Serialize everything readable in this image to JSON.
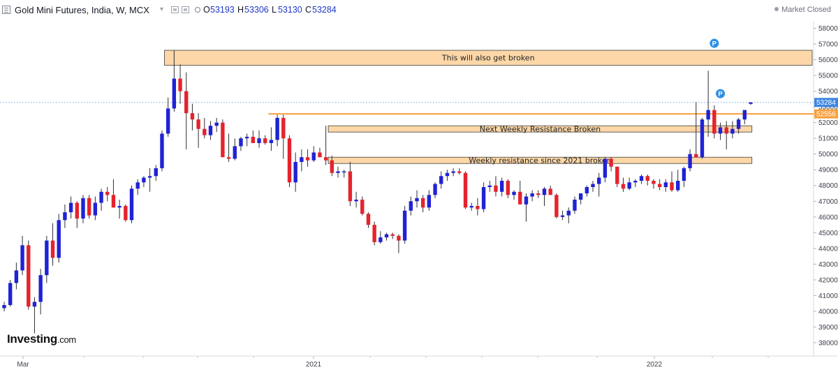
{
  "header": {
    "symbol": "Gold Mini Futures, India, W, MCX",
    "ohlc": [
      {
        "label": "O",
        "value": "53193"
      },
      {
        "label": "H",
        "value": "53306"
      },
      {
        "label": "L",
        "value": "53130"
      },
      {
        "label": "C",
        "value": "53284"
      }
    ],
    "market_status": "Market Closed"
  },
  "brand": {
    "name": "Investing",
    "suffix": ".com"
  },
  "colors": {
    "up": "#2022d6",
    "down": "#e5232d",
    "zone_fill": "#fcc989",
    "zone_border": "#3d3d3d",
    "line": "#f7a03c",
    "price_tag": "#3d86e0"
  },
  "chart_data": {
    "type": "candlestick",
    "ylim": [
      37600,
      58200
    ],
    "yticks": [
      38000,
      39000,
      40000,
      41000,
      42000,
      43000,
      44000,
      45000,
      46000,
      47000,
      48000,
      49000,
      50000,
      51000,
      52000,
      53000,
      54000,
      55000,
      56000,
      57000,
      58000
    ],
    "ytick_labels": [
      "38000",
      "39000",
      "40000",
      "41000",
      "42000",
      "43000",
      "44000",
      "45000",
      "46000",
      "47000",
      "48000",
      "49000",
      "50000",
      "51000",
      "52000",
      "53000",
      "54000",
      "55000",
      "56000",
      "57000",
      "58000"
    ],
    "xtick_labels": [
      "Mar",
      "2021",
      "2022"
    ],
    "candles": [
      [
        40200,
        40600,
        40000,
        40400
      ],
      [
        40400,
        42000,
        40300,
        41800
      ],
      [
        41800,
        43100,
        41400,
        42600
      ],
      [
        42600,
        44800,
        42300,
        44200
      ],
      [
        44200,
        44500,
        40100,
        40300
      ],
      [
        40300,
        40900,
        38600,
        40600
      ],
      [
        40600,
        42700,
        39800,
        42300
      ],
      [
        42300,
        44800,
        41800,
        44500
      ],
      [
        44500,
        45600,
        42900,
        43400
      ],
      [
        43400,
        46200,
        43100,
        45800
      ],
      [
        45800,
        46800,
        45300,
        46300
      ],
      [
        46300,
        47300,
        45900,
        46900
      ],
      [
        46900,
        47000,
        45300,
        45900
      ],
      [
        45900,
        47400,
        45600,
        47200
      ],
      [
        47200,
        47400,
        45900,
        46100
      ],
      [
        46100,
        47300,
        45800,
        46900
      ],
      [
        46900,
        47800,
        46400,
        47600
      ],
      [
        47600,
        47900,
        47000,
        47400
      ],
      [
        47400,
        48400,
        46600,
        46600
      ],
      [
        46600,
        47100,
        45900,
        46700
      ],
      [
        46700,
        46800,
        45700,
        45800
      ],
      [
        45800,
        48000,
        45600,
        47800
      ],
      [
        47800,
        48400,
        47400,
        48200
      ],
      [
        48200,
        48600,
        47900,
        48500
      ],
      [
        48500,
        49100,
        47600,
        48600
      ],
      [
        48600,
        49300,
        48300,
        49100
      ],
      [
        49100,
        51500,
        48900,
        51300
      ],
      [
        51300,
        53600,
        51100,
        52900
      ],
      [
        52900,
        56600,
        52700,
        54800
      ],
      [
        54800,
        55700,
        53200,
        54000
      ],
      [
        54000,
        55200,
        50300,
        52600
      ],
      [
        52600,
        53200,
        51500,
        52200
      ],
      [
        52200,
        52600,
        50400,
        51600
      ],
      [
        51600,
        52300,
        51000,
        51200
      ],
      [
        51200,
        52100,
        50900,
        51800
      ],
      [
        51800,
        52300,
        51400,
        52000
      ],
      [
        52000,
        52200,
        49800,
        49800
      ],
      [
        49800,
        51300,
        49500,
        49700
      ],
      [
        49700,
        51000,
        49600,
        50500
      ],
      [
        50500,
        51100,
        50200,
        51000
      ],
      [
        51000,
        51300,
        50500,
        51100
      ],
      [
        51100,
        51500,
        50700,
        50700
      ],
      [
        50700,
        51500,
        50400,
        51000
      ],
      [
        51000,
        51200,
        50600,
        50700
      ],
      [
        50700,
        51700,
        50200,
        50900
      ],
      [
        50900,
        52500,
        50500,
        52300
      ],
      [
        52300,
        52500,
        49700,
        51000
      ],
      [
        51000,
        51200,
        47900,
        48200
      ],
      [
        48200,
        50100,
        47600,
        49500
      ],
      [
        49500,
        50300,
        48900,
        49800
      ],
      [
        49800,
        50300,
        49200,
        49600
      ],
      [
        49600,
        50500,
        49500,
        50100
      ],
      [
        50100,
        50400,
        49800,
        49800
      ],
      [
        49800,
        51800,
        49300,
        49600
      ],
      [
        49600,
        49900,
        48600,
        48800
      ],
      [
        48800,
        49200,
        48500,
        48900
      ],
      [
        48900,
        49000,
        48500,
        48900
      ],
      [
        48900,
        49500,
        46700,
        47000
      ],
      [
        47000,
        47600,
        46600,
        47100
      ],
      [
        47100,
        47300,
        46100,
        46200
      ],
      [
        46200,
        46300,
        45300,
        45500
      ],
      [
        45500,
        45700,
        44200,
        44400
      ],
      [
        44400,
        45100,
        44300,
        44700
      ],
      [
        44700,
        45000,
        44500,
        44900
      ],
      [
        44900,
        45000,
        44600,
        44800
      ],
      [
        44800,
        44900,
        43700,
        44500
      ],
      [
        44500,
        46700,
        44300,
        46400
      ],
      [
        46400,
        47300,
        46100,
        47000
      ],
      [
        47000,
        47700,
        46600,
        47200
      ],
      [
        47200,
        47400,
        46300,
        46600
      ],
      [
        46600,
        47700,
        46400,
        47400
      ],
      [
        47400,
        48200,
        47200,
        48100
      ],
      [
        48100,
        48900,
        47800,
        48600
      ],
      [
        48600,
        49000,
        48300,
        48800
      ],
      [
        48800,
        49100,
        48600,
        48900
      ],
      [
        48900,
        49100,
        48700,
        48800
      ],
      [
        48800,
        48900,
        46500,
        46600
      ],
      [
        46600,
        46900,
        46400,
        46700
      ],
      [
        46700,
        47200,
        46100,
        46500
      ],
      [
        46500,
        48200,
        46300,
        47900
      ],
      [
        47900,
        48300,
        47600,
        48000
      ],
      [
        48000,
        48600,
        47300,
        47600
      ],
      [
        47600,
        48500,
        47300,
        48300
      ],
      [
        48300,
        48400,
        47200,
        47400
      ],
      [
        47400,
        47700,
        47100,
        47600
      ],
      [
        47600,
        48300,
        46800,
        46800
      ],
      [
        46800,
        47500,
        45700,
        47300
      ],
      [
        47300,
        47700,
        47000,
        47500
      ],
      [
        47500,
        47700,
        47200,
        47400
      ],
      [
        47400,
        47900,
        46700,
        47800
      ],
      [
        47800,
        48000,
        47400,
        47400
      ],
      [
        47400,
        47500,
        45900,
        46000
      ],
      [
        46000,
        46400,
        45800,
        46100
      ],
      [
        46100,
        46600,
        45600,
        46400
      ],
      [
        46400,
        47300,
        46200,
        47100
      ],
      [
        47100,
        47500,
        46800,
        47500
      ],
      [
        47500,
        48000,
        47300,
        47900
      ],
      [
        47900,
        48300,
        47600,
        48100
      ],
      [
        48100,
        48800,
        47300,
        48500
      ],
      [
        48500,
        49800,
        48200,
        49700
      ],
      [
        49700,
        49800,
        48900,
        49200
      ],
      [
        49200,
        49200,
        47900,
        48100
      ],
      [
        48100,
        48500,
        47600,
        47800
      ],
      [
        47800,
        48500,
        47700,
        48200
      ],
      [
        48200,
        48400,
        47900,
        48300
      ],
      [
        48300,
        48700,
        48100,
        48600
      ],
      [
        48600,
        48700,
        48000,
        48300
      ],
      [
        48300,
        48400,
        47800,
        48100
      ],
      [
        48100,
        48400,
        47700,
        47900
      ],
      [
        47900,
        48400,
        47600,
        48200
      ],
      [
        48200,
        48900,
        47600,
        47700
      ],
      [
        47700,
        49000,
        47600,
        48300
      ],
      [
        48300,
        49200,
        47900,
        49100
      ],
      [
        49100,
        50300,
        48900,
        50000
      ],
      [
        50000,
        53300,
        49900,
        49800
      ],
      [
        49800,
        52300,
        49700,
        52200
      ],
      [
        52200,
        55300,
        51100,
        52800
      ],
      [
        52800,
        53100,
        51000,
        51300
      ],
      [
        51300,
        52000,
        50900,
        51700
      ],
      [
        51700,
        52100,
        50300,
        51300
      ],
      [
        51300,
        52100,
        51000,
        51600
      ],
      [
        51600,
        52300,
        51300,
        52200
      ],
      [
        52200,
        52800,
        51900,
        52800
      ],
      [
        53193,
        53306,
        53130,
        53284
      ]
    ],
    "zones": [
      {
        "label": "This will also get broken",
        "top": 56600,
        "bottom": 55650,
        "start": 27,
        "end": "right"
      },
      {
        "label": "Next Weekly Resistance Broken",
        "top": 51800,
        "bottom": 51400,
        "start": 54,
        "end": 122
      },
      {
        "label": "Weekly resistance since 2021 broken",
        "top": 49800,
        "bottom": 49400,
        "start": 54,
        "end": 122
      }
    ],
    "hlines": [
      {
        "value": 52556,
        "label": "52556",
        "start": 44
      }
    ],
    "last_price": {
      "value": 53284,
      "label": "53284"
    },
    "markers": [
      {
        "label": "P",
        "candle": 117,
        "value": 56600
      },
      {
        "label": "P",
        "candle": 118,
        "value": 53400
      }
    ]
  }
}
